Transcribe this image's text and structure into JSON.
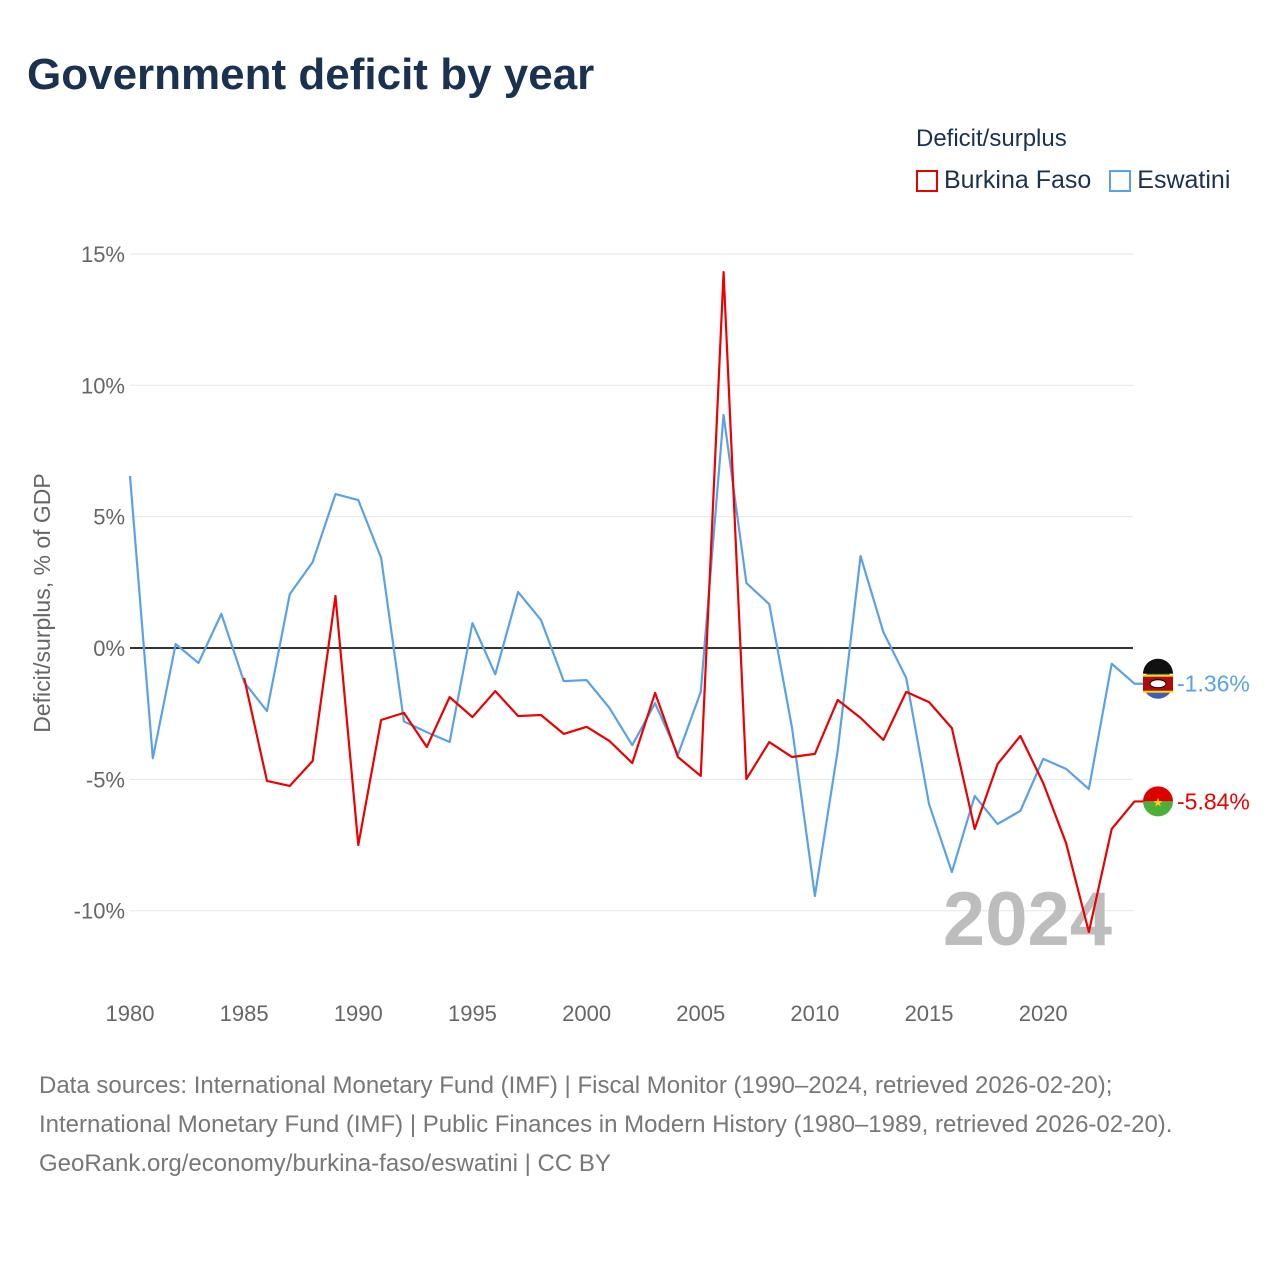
{
  "title": "Government deficit by year",
  "legend": {
    "title": "Deficit/surplus",
    "items": [
      {
        "name": "Burkina Faso",
        "color": "#ee0000"
      },
      {
        "name": "Eswatini",
        "color": "#5aa2e8"
      }
    ]
  },
  "watermark_year": "2024",
  "footer": {
    "sources": "Data sources: International Monetary Fund (IMF) | Fiscal Monitor (1990–2024, retrieved 2026-02-20); International Monetary Fund (IMF) | Public Finances in Modern History (1980–1989, retrieved 2026-02-20).",
    "credit": "GeoRank.org/economy/burkina-faso/eswatini | CC BY"
  },
  "chart_data": {
    "type": "line",
    "title": "Government deficit by year",
    "ylabel": "Deficit/surplus, % of GDP",
    "xlabel": "",
    "xlim": [
      1980,
      2024
    ],
    "ylim": [
      -12.5,
      15
    ],
    "yticks": [
      15,
      10,
      5,
      0,
      -5,
      -10
    ],
    "ytick_labels": [
      "15%",
      "10%",
      "5%",
      "0%",
      "-5%",
      "-10%"
    ],
    "xticks": [
      1980,
      1985,
      1990,
      1995,
      2000,
      2005,
      2010,
      2015,
      2020
    ],
    "xtick_labels": [
      "1980",
      "1985",
      "1990",
      "1995",
      "2000",
      "2005",
      "2010",
      "2015",
      "2020"
    ],
    "grid": true,
    "legend_position": "top-right",
    "series": [
      {
        "name": "Burkina Faso",
        "color": "#ee0000",
        "end_label": "-5.84%",
        "start": 1985,
        "values": [
          -1.14,
          -5.06,
          -5.25,
          -4.3,
          1.98,
          -7.5,
          -2.74,
          -2.47,
          -3.77,
          -1.87,
          -2.63,
          -1.64,
          -2.59,
          -2.55,
          -3.27,
          -3.0,
          -3.54,
          -4.38,
          -1.71,
          -4.15,
          -4.87,
          14.31,
          -4.99,
          -3.58,
          -4.15,
          -4.03,
          -1.98,
          -2.66,
          -3.5,
          -1.67,
          -2.06,
          -3.05,
          -6.89,
          -4.42,
          -3.35,
          -5.14,
          -7.42,
          -10.81,
          -6.89,
          -5.84
        ]
      },
      {
        "name": "Eswatini",
        "color": "#5aa2e8",
        "end_label": "-1.36%",
        "start": 1980,
        "values": [
          6.55,
          -4.2,
          0.15,
          -0.57,
          1.3,
          -1.3,
          -2.4,
          2.05,
          3.27,
          5.86,
          5.63,
          3.43,
          -2.8,
          -3.2,
          -3.58,
          0.95,
          -1.0,
          2.13,
          1.07,
          -1.26,
          -1.22,
          -2.28,
          -3.7,
          -2.1,
          -4.07,
          -1.67,
          8.87,
          2.47,
          1.67,
          -3.05,
          -9.44,
          -3.9,
          3.5,
          0.6,
          -1.14,
          -5.94,
          -8.53,
          -5.63,
          -6.7,
          -6.2,
          -4.22,
          -4.6,
          -5.37,
          -0.6,
          -1.36
        ]
      }
    ]
  }
}
